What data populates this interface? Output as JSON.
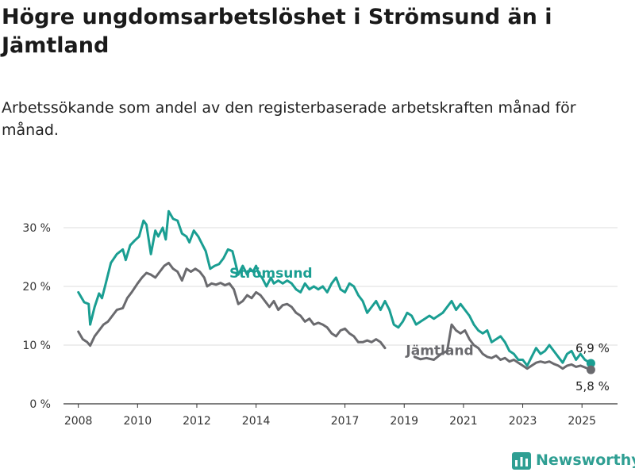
{
  "title": "Högre ungdomsarbetslöshet i Strömsund än i Jämtland",
  "subtitle": "Arbetssökande som andel av den registerbaserade arbetskraften månad för månad.",
  "brand": "Newsworthy",
  "colors": {
    "stromsund": "#1a9e92",
    "jamtland": "#6a6a6e",
    "grid": "#dddddd",
    "brand": "#2f9f93"
  },
  "chart_data": {
    "type": "line",
    "x_ticks": [
      "2008",
      "2010",
      "2012",
      "2014",
      "2017",
      "2019",
      "2021",
      "2023",
      "2025"
    ],
    "x_tick_positions": [
      2008,
      2010,
      2012,
      2014,
      2017,
      2019,
      2021,
      2023,
      2025
    ],
    "y_ticks": [
      "0 %",
      "10 %",
      "20 %",
      "30 %"
    ],
    "y_tick_values": [
      0,
      10,
      20,
      30
    ],
    "xlim": [
      2007.5,
      2026.2
    ],
    "ylim": [
      0,
      35
    ],
    "grid": "horizontal",
    "series": [
      {
        "name": "Strömsund",
        "key": "stromsund",
        "end_label": "6,9 %",
        "points": [
          [
            2008.0,
            19.0
          ],
          [
            2008.2,
            17.3
          ],
          [
            2008.35,
            17.0
          ],
          [
            2008.4,
            13.5
          ],
          [
            2008.55,
            16.5
          ],
          [
            2008.7,
            18.8
          ],
          [
            2008.8,
            18.0
          ],
          [
            2008.9,
            20.0
          ],
          [
            2009.1,
            24.0
          ],
          [
            2009.3,
            25.5
          ],
          [
            2009.5,
            26.3
          ],
          [
            2009.6,
            24.5
          ],
          [
            2009.75,
            27.0
          ],
          [
            2009.9,
            27.8
          ],
          [
            2010.05,
            28.5
          ],
          [
            2010.2,
            31.2
          ],
          [
            2010.3,
            30.5
          ],
          [
            2010.45,
            25.5
          ],
          [
            2010.6,
            29.5
          ],
          [
            2010.7,
            28.5
          ],
          [
            2010.85,
            30.0
          ],
          [
            2010.95,
            28.0
          ],
          [
            2011.05,
            32.8
          ],
          [
            2011.2,
            31.5
          ],
          [
            2011.35,
            31.2
          ],
          [
            2011.5,
            29.0
          ],
          [
            2011.65,
            28.5
          ],
          [
            2011.75,
            27.5
          ],
          [
            2011.9,
            29.5
          ],
          [
            2012.05,
            28.5
          ],
          [
            2012.2,
            27.0
          ],
          [
            2012.3,
            26.0
          ],
          [
            2012.45,
            23.0
          ],
          [
            2012.6,
            23.5
          ],
          [
            2012.75,
            23.8
          ],
          [
            2012.9,
            24.8
          ],
          [
            2013.05,
            26.3
          ],
          [
            2013.2,
            26.0
          ],
          [
            2013.3,
            24.0
          ],
          [
            2013.4,
            22.0
          ],
          [
            2013.55,
            23.5
          ],
          [
            2013.7,
            22.0
          ],
          [
            2013.8,
            23.0
          ],
          [
            2013.9,
            22.5
          ],
          [
            2014.0,
            23.5
          ],
          [
            2014.1,
            22.0
          ],
          [
            2014.2,
            21.5
          ],
          [
            2014.35,
            20.0
          ],
          [
            2014.5,
            21.5
          ],
          [
            2014.6,
            20.5
          ],
          [
            2014.75,
            21.0
          ],
          [
            2014.9,
            20.5
          ],
          [
            2015.05,
            21.0
          ],
          [
            2015.2,
            20.5
          ],
          [
            2015.35,
            19.5
          ],
          [
            2015.5,
            19.0
          ],
          [
            2015.65,
            20.5
          ],
          [
            2015.8,
            19.5
          ],
          [
            2015.95,
            20.0
          ],
          [
            2016.1,
            19.5
          ],
          [
            2016.25,
            20.0
          ],
          [
            2016.4,
            19.0
          ],
          [
            2016.55,
            20.5
          ],
          [
            2016.7,
            21.5
          ],
          [
            2016.85,
            19.5
          ],
          [
            2017.0,
            19.0
          ],
          [
            2017.15,
            20.5
          ],
          [
            2017.3,
            20.0
          ],
          [
            2017.45,
            18.5
          ],
          [
            2017.6,
            17.5
          ],
          [
            2017.75,
            15.5
          ],
          [
            2017.9,
            16.5
          ],
          [
            2018.05,
            17.5
          ],
          [
            2018.2,
            16.0
          ],
          [
            2018.35,
            17.5
          ],
          [
            2018.5,
            16.0
          ],
          [
            2018.65,
            13.5
          ],
          [
            2018.8,
            13.0
          ],
          [
            2018.95,
            14.0
          ],
          [
            2019.1,
            15.5
          ],
          [
            2019.25,
            15.0
          ],
          [
            2019.4,
            13.5
          ],
          [
            2019.55,
            14.0
          ],
          [
            2019.7,
            14.5
          ],
          [
            2019.85,
            15.0
          ],
          [
            2020.0,
            14.5
          ],
          [
            2020.15,
            15.0
          ],
          [
            2020.3,
            15.5
          ],
          [
            2020.45,
            16.5
          ],
          [
            2020.6,
            17.5
          ],
          [
            2020.75,
            16.0
          ],
          [
            2020.9,
            17.0
          ],
          [
            2021.05,
            16.0
          ],
          [
            2021.2,
            15.0
          ],
          [
            2021.35,
            13.5
          ],
          [
            2021.5,
            12.5
          ],
          [
            2021.65,
            12.0
          ],
          [
            2021.8,
            12.5
          ],
          [
            2021.95,
            10.5
          ],
          [
            2022.1,
            11.0
          ],
          [
            2022.25,
            11.5
          ],
          [
            2022.4,
            10.5
          ],
          [
            2022.55,
            9.0
          ],
          [
            2022.7,
            8.5
          ],
          [
            2022.85,
            7.5
          ],
          [
            2023.0,
            7.5
          ],
          [
            2023.15,
            6.5
          ],
          [
            2023.3,
            8.0
          ],
          [
            2023.45,
            9.5
          ],
          [
            2023.6,
            8.5
          ],
          [
            2023.75,
            9.0
          ],
          [
            2023.9,
            10.0
          ],
          [
            2024.05,
            9.0
          ],
          [
            2024.2,
            8.0
          ],
          [
            2024.35,
            7.0
          ],
          [
            2024.5,
            8.5
          ],
          [
            2024.65,
            9.0
          ],
          [
            2024.8,
            7.5
          ],
          [
            2024.95,
            8.5
          ],
          [
            2025.1,
            7.5
          ],
          [
            2025.3,
            6.9
          ]
        ]
      },
      {
        "name": "Jämtland",
        "key": "jamtland",
        "end_label": "5,8 %",
        "points": [
          [
            2008.0,
            12.3
          ],
          [
            2008.15,
            11.0
          ],
          [
            2008.3,
            10.5
          ],
          [
            2008.4,
            9.9
          ],
          [
            2008.55,
            11.5
          ],
          [
            2008.7,
            12.5
          ],
          [
            2008.85,
            13.5
          ],
          [
            2009.0,
            14.0
          ],
          [
            2009.15,
            15.0
          ],
          [
            2009.3,
            16.0
          ],
          [
            2009.5,
            16.3
          ],
          [
            2009.65,
            18.0
          ],
          [
            2009.8,
            19.0
          ],
          [
            2010.0,
            20.5
          ],
          [
            2010.15,
            21.5
          ],
          [
            2010.3,
            22.3
          ],
          [
            2010.45,
            22.0
          ],
          [
            2010.6,
            21.5
          ],
          [
            2010.75,
            22.5
          ],
          [
            2010.9,
            23.5
          ],
          [
            2011.05,
            24.0
          ],
          [
            2011.2,
            23.0
          ],
          [
            2011.35,
            22.5
          ],
          [
            2011.5,
            21.0
          ],
          [
            2011.65,
            23.0
          ],
          [
            2011.8,
            22.5
          ],
          [
            2011.95,
            23.0
          ],
          [
            2012.1,
            22.5
          ],
          [
            2012.25,
            21.5
          ],
          [
            2012.35,
            20.0
          ],
          [
            2012.5,
            20.5
          ],
          [
            2012.65,
            20.3
          ],
          [
            2012.8,
            20.6
          ],
          [
            2012.95,
            20.2
          ],
          [
            2013.1,
            20.5
          ],
          [
            2013.25,
            19.5
          ],
          [
            2013.4,
            17.0
          ],
          [
            2013.55,
            17.5
          ],
          [
            2013.7,
            18.5
          ],
          [
            2013.85,
            18.0
          ],
          [
            2014.0,
            19.0
          ],
          [
            2014.15,
            18.5
          ],
          [
            2014.3,
            17.5
          ],
          [
            2014.45,
            16.5
          ],
          [
            2014.6,
            17.5
          ],
          [
            2014.75,
            16.0
          ],
          [
            2014.9,
            16.8
          ],
          [
            2015.05,
            17.0
          ],
          [
            2015.2,
            16.5
          ],
          [
            2015.35,
            15.5
          ],
          [
            2015.5,
            15.0
          ],
          [
            2015.65,
            14.0
          ],
          [
            2015.8,
            14.5
          ],
          [
            2015.95,
            13.5
          ],
          [
            2016.1,
            13.8
          ],
          [
            2016.25,
            13.5
          ],
          [
            2016.4,
            13.0
          ],
          [
            2016.55,
            12.0
          ],
          [
            2016.7,
            11.5
          ],
          [
            2016.85,
            12.5
          ],
          [
            2017.0,
            12.8
          ],
          [
            2017.15,
            12.0
          ],
          [
            2017.3,
            11.5
          ],
          [
            2017.45,
            10.5
          ],
          [
            2017.6,
            10.5
          ],
          [
            2017.75,
            10.8
          ],
          [
            2017.9,
            10.5
          ],
          [
            2018.05,
            11.0
          ],
          [
            2018.2,
            10.5
          ],
          [
            2018.35,
            9.5
          ]
        ],
        "points_late": [
          [
            2019.35,
            8.0
          ],
          [
            2019.55,
            7.6
          ],
          [
            2019.75,
            7.8
          ],
          [
            2020.0,
            7.5
          ],
          [
            2020.25,
            8.5
          ],
          [
            2020.45,
            9.0
          ],
          [
            2020.6,
            13.5
          ],
          [
            2020.75,
            12.5
          ],
          [
            2020.9,
            12.0
          ],
          [
            2021.05,
            12.5
          ],
          [
            2021.2,
            11.0
          ],
          [
            2021.35,
            10.0
          ],
          [
            2021.5,
            9.5
          ],
          [
            2021.65,
            8.5
          ],
          [
            2021.8,
            8.0
          ],
          [
            2021.95,
            7.8
          ],
          [
            2022.1,
            8.2
          ],
          [
            2022.25,
            7.5
          ],
          [
            2022.4,
            7.8
          ],
          [
            2022.55,
            7.2
          ],
          [
            2022.7,
            7.5
          ],
          [
            2022.85,
            7.0
          ],
          [
            2023.0,
            6.5
          ],
          [
            2023.15,
            6.0
          ],
          [
            2023.3,
            6.5
          ],
          [
            2023.45,
            7.0
          ],
          [
            2023.6,
            7.2
          ],
          [
            2023.75,
            7.0
          ],
          [
            2023.9,
            7.2
          ],
          [
            2024.05,
            6.8
          ],
          [
            2024.2,
            6.5
          ],
          [
            2024.35,
            6.0
          ],
          [
            2024.5,
            6.5
          ],
          [
            2024.65,
            6.7
          ],
          [
            2024.8,
            6.3
          ],
          [
            2024.95,
            6.5
          ],
          [
            2025.1,
            6.2
          ],
          [
            2025.3,
            5.8
          ]
        ]
      }
    ],
    "annotations": [
      {
        "text": "Strömsund",
        "series": "stromsund",
        "x": 2014.5,
        "y": 21.5
      },
      {
        "text": "Jämtland",
        "series": "jamtland",
        "x": 2020.2,
        "y": 8.3
      }
    ]
  }
}
